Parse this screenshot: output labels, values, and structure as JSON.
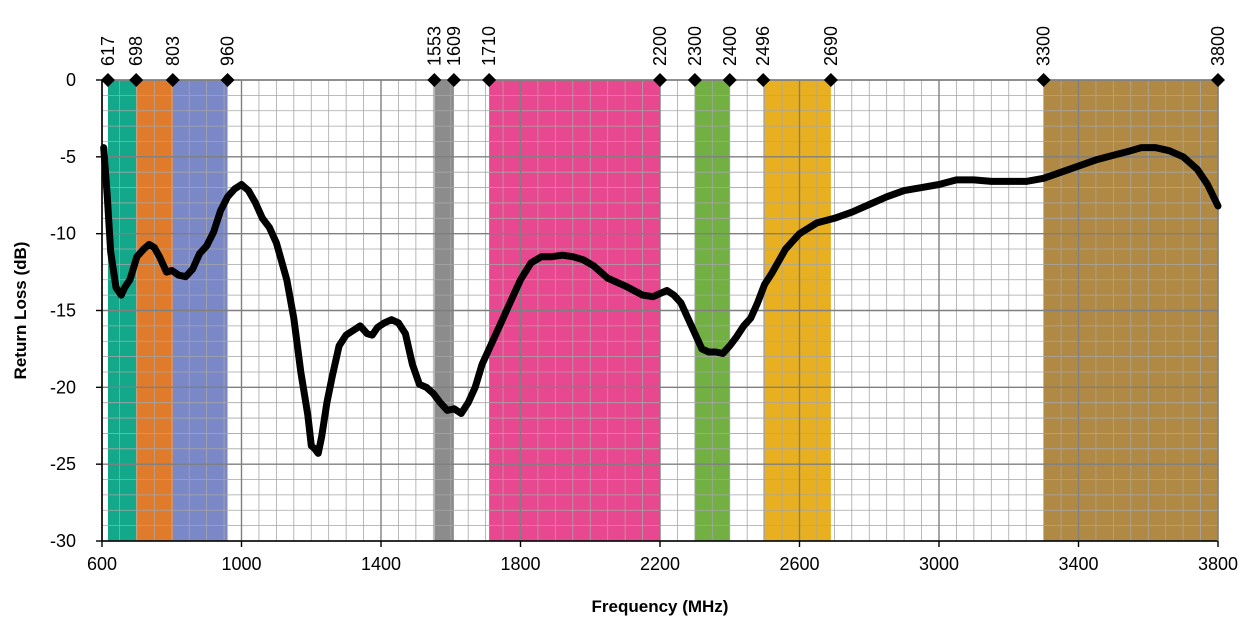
{
  "chart_data": {
    "type": "line",
    "title": "",
    "xlabel": "Frequency (MHz)",
    "ylabel": "Return Loss (dB)",
    "xlim": [
      600,
      3800
    ],
    "ylim": [
      -30,
      0
    ],
    "x_major_ticks": [
      600,
      1000,
      1400,
      1800,
      2200,
      2600,
      3000,
      3400,
      3800
    ],
    "x_minor_step": 50,
    "y_major_ticks": [
      0,
      -5,
      -10,
      -15,
      -20,
      -25,
      -30
    ],
    "y_minor_step": 1,
    "grid": true,
    "bands": [
      {
        "from": 617,
        "to": 698,
        "color": "#13a88a"
      },
      {
        "from": 698,
        "to": 803,
        "color": "#e07b2c"
      },
      {
        "from": 803,
        "to": 960,
        "color": "#7b88c8"
      },
      {
        "from": 1553,
        "to": 1609,
        "color": "#8c8c8c"
      },
      {
        "from": 1710,
        "to": 2200,
        "color": "#e8488f"
      },
      {
        "from": 2300,
        "to": 2400,
        "color": "#72b043"
      },
      {
        "from": 2496,
        "to": 2690,
        "color": "#e8b020"
      },
      {
        "from": 3300,
        "to": 3800,
        "color": "#b08a45"
      }
    ],
    "markers": [
      617,
      698,
      803,
      960,
      1553,
      1609,
      1710,
      2200,
      2300,
      2400,
      2496,
      2690,
      3300,
      3800
    ],
    "marker_labels": [
      "617",
      "698",
      "803",
      "960",
      "1553",
      "1609",
      "1710",
      "2200",
      "2300",
      "2400",
      "2496",
      "2690",
      "3300",
      "3800"
    ],
    "series": [
      {
        "color": "#000000",
        "x": [
          605,
          615,
          625,
          640,
          655,
          665,
          680,
          700,
          720,
          735,
          750,
          765,
          785,
          800,
          820,
          840,
          860,
          880,
          900,
          920,
          940,
          960,
          980,
          1000,
          1020,
          1040,
          1060,
          1080,
          1100,
          1130,
          1150,
          1170,
          1190,
          1200,
          1210,
          1220,
          1230,
          1245,
          1260,
          1280,
          1300,
          1320,
          1340,
          1360,
          1375,
          1390,
          1410,
          1430,
          1450,
          1470,
          1490,
          1510,
          1530,
          1550,
          1570,
          1590,
          1610,
          1630,
          1650,
          1670,
          1690,
          1710,
          1740,
          1770,
          1800,
          1830,
          1860,
          1890,
          1920,
          1950,
          1980,
          2010,
          2050,
          2100,
          2150,
          2180,
          2200,
          2220,
          2240,
          2260,
          2280,
          2300,
          2320,
          2340,
          2360,
          2380,
          2400,
          2420,
          2440,
          2460,
          2480,
          2500,
          2520,
          2540,
          2560,
          2600,
          2650,
          2700,
          2750,
          2800,
          2850,
          2900,
          2950,
          3000,
          3050,
          3100,
          3150,
          3200,
          3250,
          3300,
          3350,
          3400,
          3450,
          3500,
          3550,
          3580,
          3620,
          3660,
          3700,
          3740,
          3770,
          3800
        ],
        "y": [
          -4.4,
          -7.5,
          -11.2,
          -13.5,
          -14.0,
          -13.5,
          -13.0,
          -11.5,
          -11.0,
          -10.7,
          -10.9,
          -11.5,
          -12.5,
          -12.4,
          -12.7,
          -12.8,
          -12.3,
          -11.3,
          -10.8,
          -9.9,
          -8.5,
          -7.6,
          -7.1,
          -6.8,
          -7.2,
          -8.0,
          -9.0,
          -9.6,
          -10.6,
          -13.0,
          -15.5,
          -19.0,
          -21.8,
          -23.8,
          -24.0,
          -24.3,
          -23.2,
          -21.0,
          -19.3,
          -17.3,
          -16.6,
          -16.3,
          -16.0,
          -16.5,
          -16.6,
          -16.1,
          -15.8,
          -15.6,
          -15.8,
          -16.5,
          -18.5,
          -19.8,
          -20.0,
          -20.4,
          -21.0,
          -21.5,
          -21.4,
          -21.7,
          -21.0,
          -20.0,
          -18.5,
          -17.5,
          -16.0,
          -14.5,
          -13.0,
          -11.9,
          -11.5,
          -11.5,
          -11.4,
          -11.5,
          -11.7,
          -12.1,
          -12.9,
          -13.4,
          -14.0,
          -14.1,
          -13.9,
          -13.7,
          -14.0,
          -14.5,
          -15.5,
          -16.5,
          -17.5,
          -17.7,
          -17.7,
          -17.8,
          -17.3,
          -16.7,
          -16.0,
          -15.5,
          -14.5,
          -13.3,
          -12.6,
          -11.8,
          -11.0,
          -10.0,
          -9.3,
          -9.0,
          -8.6,
          -8.1,
          -7.6,
          -7.2,
          -7.0,
          -6.8,
          -6.5,
          -6.5,
          -6.6,
          -6.6,
          -6.6,
          -6.4,
          -6.0,
          -5.6,
          -5.2,
          -4.9,
          -4.6,
          -4.4,
          -4.4,
          -4.6,
          -5.0,
          -5.8,
          -6.8,
          -8.2
        ]
      }
    ]
  }
}
